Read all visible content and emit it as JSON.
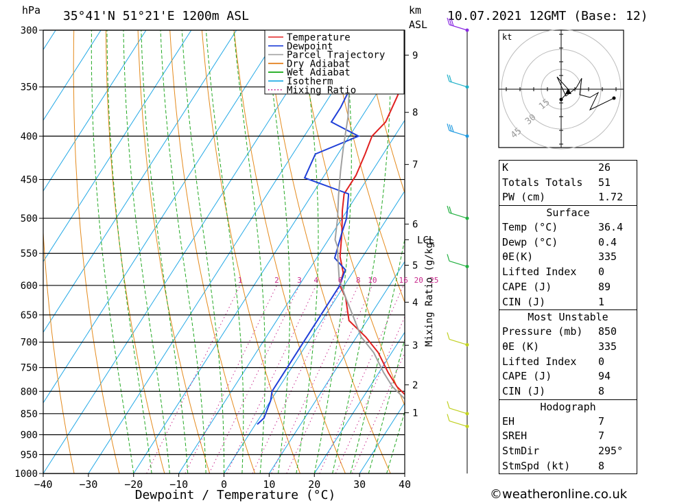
{
  "header": {
    "hpa_label": "hPa",
    "location": "35°41'N  51°21'E  1200m  ASL",
    "km_label": "km",
    "asl_label": "ASL",
    "datetime": "10.07.2021  12GMT  (Base: 12)"
  },
  "legend": [
    {
      "label": "Temperature",
      "color": "#e02020",
      "style": "solid"
    },
    {
      "label": "Dewpoint",
      "color": "#1f3fd8",
      "style": "solid"
    },
    {
      "label": "Parcel Trajectory",
      "color": "#a0a0a0",
      "style": "solid"
    },
    {
      "label": "Dry Adiabat",
      "color": "#e07000",
      "style": "solid"
    },
    {
      "label": "Wet Adiabat",
      "color": "#00a000",
      "style": "solid"
    },
    {
      "label": "Isotherm",
      "color": "#00a0e0",
      "style": "solid"
    },
    {
      "label": "Mixing Ratio",
      "color": "#c00080",
      "style": "dotted"
    }
  ],
  "chart_data": {
    "type": "line",
    "title": "35°41'N  51°21'E  1200m  ASL",
    "xlabel": "Dewpoint / Temperature (°C)",
    "ylabel": "hPa",
    "xlim": [
      -40,
      40
    ],
    "x_ticks": [
      "−40",
      "−30",
      "−20",
      "−10",
      "0",
      "10",
      "20",
      "30",
      "40"
    ],
    "y_ticks": [
      300,
      350,
      400,
      450,
      500,
      550,
      600,
      650,
      700,
      750,
      800,
      850,
      900,
      950,
      1000
    ],
    "km_ticks": [
      {
        "km": 1,
        "p": 848
      },
      {
        "km": 2,
        "p": 786
      },
      {
        "km": 3,
        "p": 706
      },
      {
        "km": 4,
        "p": 628
      },
      {
        "km": 5,
        "p": 568
      },
      {
        "km": 6,
        "p": 508
      },
      {
        "km": 7,
        "p": 432
      },
      {
        "km": 8,
        "p": 375
      },
      {
        "km": 9,
        "p": 321
      }
    ],
    "km_labels": [
      "1",
      "2",
      "3",
      "4",
      "5",
      "6",
      "7",
      "8",
      "9"
    ],
    "lcl_label": "LCL",
    "lcl_p": 530,
    "mixing_ratio_axis_label": "Mixing Ratio (g/kg)",
    "mixing_ratio_values": [
      "1",
      "2",
      "3",
      "4",
      "6",
      "8",
      "10",
      "16",
      "20",
      "25"
    ],
    "series": [
      {
        "name": "Temperature",
        "points": [
          [
            36.4,
            875
          ],
          [
            35,
            860
          ],
          [
            31,
            820
          ],
          [
            26,
            790
          ],
          [
            22,
            760
          ],
          [
            17,
            720
          ],
          [
            12,
            690
          ],
          [
            6,
            660
          ],
          [
            2,
            620
          ],
          [
            -1,
            600
          ],
          [
            -2,
            580
          ],
          [
            -5,
            555
          ],
          [
            -8,
            520
          ],
          [
            -11,
            490
          ],
          [
            -13,
            468
          ],
          [
            -13,
            445
          ],
          [
            -14,
            420
          ],
          [
            -15,
            400
          ],
          [
            -14,
            385
          ],
          [
            -15,
            360
          ],
          [
            -16,
            340
          ],
          [
            -17,
            325
          ],
          [
            -18,
            312
          ],
          [
            -18,
            300
          ]
        ]
      },
      {
        "name": "Dewpoint",
        "points": [
          [
            0.4,
            875
          ],
          [
            1,
            860
          ],
          [
            0,
            820
          ],
          [
            -1,
            800
          ],
          [
            -1,
            760
          ],
          [
            -1,
            700
          ],
          [
            -1,
            650
          ],
          [
            -1,
            600
          ],
          [
            -2,
            575
          ],
          [
            -6,
            557
          ],
          [
            -8,
            520
          ],
          [
            -9,
            500
          ],
          [
            -12,
            468
          ],
          [
            -24,
            448
          ],
          [
            -25,
            420
          ],
          [
            -18,
            400
          ],
          [
            -26,
            385
          ],
          [
            -26,
            370
          ],
          [
            -27,
            340
          ],
          [
            -28,
            300
          ]
        ]
      },
      {
        "name": "Parcel Trajectory",
        "points": [
          [
            36.4,
            875
          ],
          [
            34,
            850
          ],
          [
            30,
            820
          ],
          [
            25,
            790
          ],
          [
            21,
            760
          ],
          [
            16,
            720
          ],
          [
            11,
            690
          ],
          [
            6,
            650
          ],
          [
            2,
            620
          ],
          [
            -2,
            590
          ],
          [
            -5,
            560
          ],
          [
            -7,
            540
          ],
          [
            -8.5,
            530
          ],
          [
            -11,
            500
          ],
          [
            -14,
            470
          ],
          [
            -17,
            440
          ],
          [
            -20,
            410
          ],
          [
            -23,
            380
          ],
          [
            -27,
            350
          ],
          [
            -31,
            320
          ],
          [
            -34,
            300
          ]
        ]
      }
    ]
  },
  "indices": [
    {
      "label": "K",
      "value": "26"
    },
    {
      "label": "Totals Totals",
      "value": "51"
    },
    {
      "label": "PW (cm)",
      "value": "1.72"
    }
  ],
  "surface": {
    "title": "Surface",
    "rows": [
      {
        "label": "Temp (°C)",
        "value": "36.4"
      },
      {
        "label": "Dewp (°C)",
        "value": "0.4"
      },
      {
        "label": "θE(K)",
        "value": "335"
      },
      {
        "label": "Lifted Index",
        "value": "0"
      },
      {
        "label": "CAPE (J)",
        "value": "89"
      },
      {
        "label": "CIN (J)",
        "value": "1"
      }
    ]
  },
  "most_unstable": {
    "title": "Most Unstable",
    "rows": [
      {
        "label": "Pressure (mb)",
        "value": "850"
      },
      {
        "label": "θE (K)",
        "value": "335"
      },
      {
        "label": "Lifted Index",
        "value": "0"
      },
      {
        "label": "CAPE (J)",
        "value": "94"
      },
      {
        "label": "CIN (J)",
        "value": "8"
      }
    ]
  },
  "hodograph": {
    "unit_label": "kt",
    "ring_labels": [
      "15",
      "30",
      "45"
    ],
    "title": "Hodograph",
    "rows": [
      {
        "label": "EH",
        "value": "7"
      },
      {
        "label": "SREH",
        "value": "7"
      },
      {
        "label": "StmDir",
        "value": "295°"
      },
      {
        "label": "StmSpd (kt)",
        "value": "8"
      }
    ]
  },
  "footer": "©weatheronline.co.uk"
}
